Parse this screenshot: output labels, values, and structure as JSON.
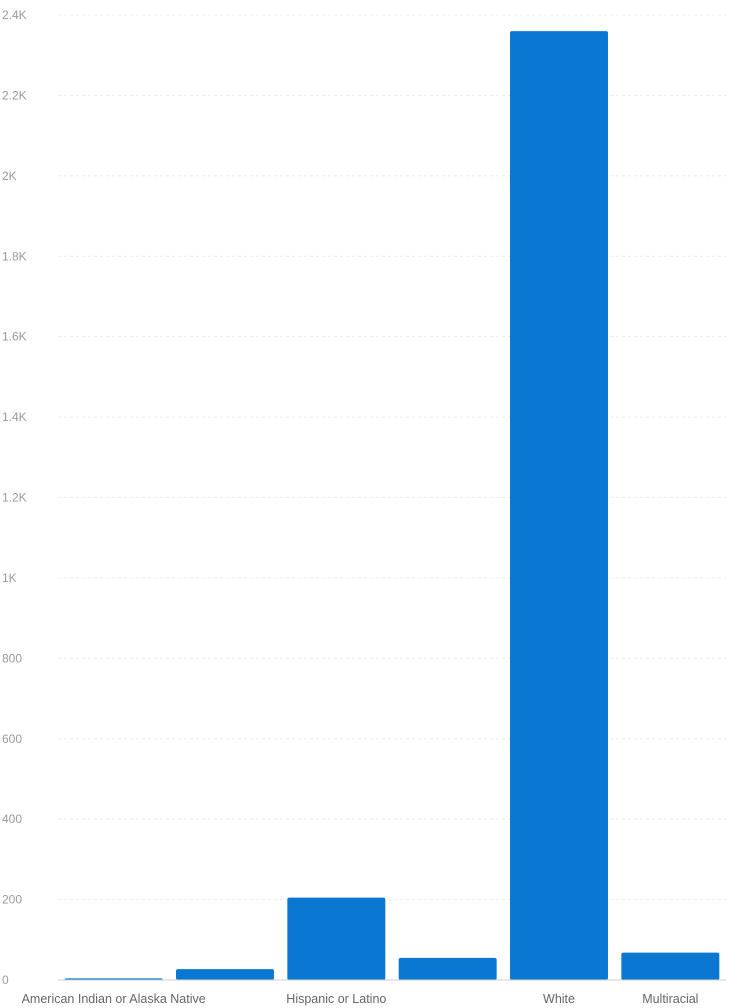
{
  "chart_data": {
    "type": "bar",
    "categories": [
      "American Indian or Alaska Native",
      "",
      "Hispanic or Latino",
      "",
      "White",
      "Multiracial"
    ],
    "values": [
      4,
      27,
      205,
      55,
      2360,
      68
    ],
    "ylim": [
      0,
      2400
    ],
    "y_ticks": [
      0,
      200,
      400,
      600,
      800,
      1000,
      1200,
      1400,
      1600,
      1800,
      2000,
      2200,
      2400
    ],
    "y_tick_labels": [
      "0",
      "200",
      "400",
      "600",
      "800",
      "1K",
      "1.2K",
      "1.4K",
      "1.6K",
      "1.8K",
      "2K",
      "2.2K",
      "2.4K"
    ],
    "grid": true,
    "bar_color": "#0a78d2",
    "grid_color": "#ececec",
    "tick_label_color": "#9a9a9a",
    "category_label_color": "#666666"
  }
}
